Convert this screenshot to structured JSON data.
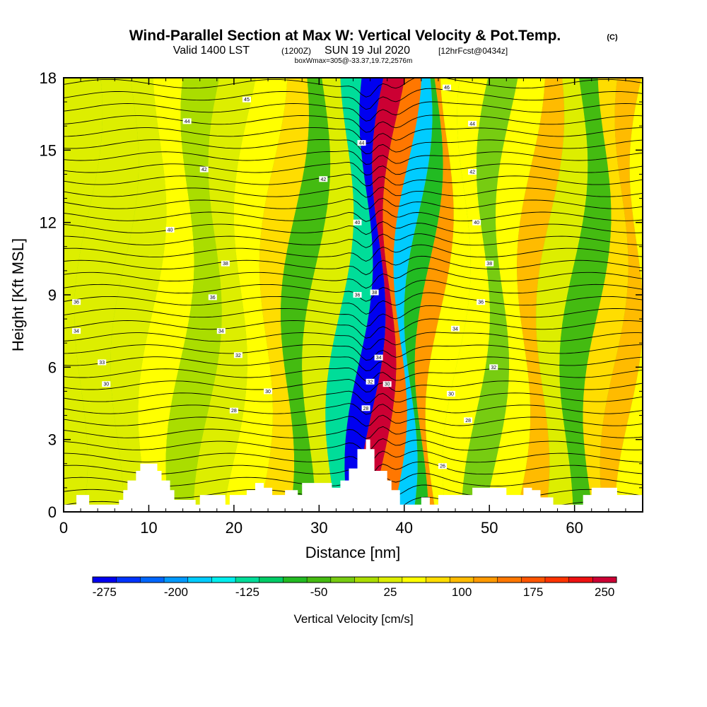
{
  "title": {
    "main": "Wind-Parallel Section at Max W: Vertical Velocity & Pot.Temp.",
    "copyright": "(C)",
    "valid_prefix": "Valid 1400 LST",
    "valid_utc": "(1200Z)",
    "valid_date": "SUN 19 Jul 2020",
    "forecast": "[12hrFcst@0434z]",
    "box_info": "boxWmax=305@-33.37,19.72,2576m"
  },
  "chart_data": {
    "type": "heatmap",
    "xlabel": "Distance [nm]",
    "ylabel": "Height [Kft MSL]",
    "xlim": [
      0,
      68
    ],
    "ylim": [
      0,
      18
    ],
    "x_ticks": [
      0,
      10,
      20,
      30,
      40,
      50,
      60
    ],
    "y_ticks": [
      0,
      3,
      6,
      9,
      12,
      15,
      18
    ],
    "colorbar": {
      "title": "Vertical Velocity [cm/s]",
      "tick_labels": [
        "-275",
        "-200",
        "-125",
        "-50",
        "25",
        "100",
        "175",
        "250"
      ],
      "colors": [
        "#0000f0",
        "#0033ff",
        "#0066ff",
        "#0099ff",
        "#00ccff",
        "#00eeee",
        "#00dd99",
        "#00cc66",
        "#22bb22",
        "#44bb11",
        "#77cc11",
        "#aadd00",
        "#ddee00",
        "#ffff00",
        "#ffdd00",
        "#ffbb00",
        "#ff9900",
        "#ff7700",
        "#ff5500",
        "#ff3300",
        "#ee1111",
        "#cc0033"
      ]
    },
    "vertical_velocity_bands": [
      {
        "x": 0,
        "w": 22
      },
      {
        "x": 5,
        "w": 18
      },
      {
        "x": 9,
        "w": 28
      },
      {
        "x": 12,
        "w": 40
      },
      {
        "x": 16,
        "w": 10
      },
      {
        "x": 19,
        "w": 22
      },
      {
        "x": 22.5,
        "w": 45
      },
      {
        "x": 25.5,
        "w": 75
      },
      {
        "x": 28,
        "w": -40
      },
      {
        "x": 31,
        "w": 25
      },
      {
        "x": 34,
        "w": -120
      },
      {
        "x": 36,
        "w": -275
      },
      {
        "x": 37.5,
        "w": 240
      },
      {
        "x": 39,
        "w": 160
      },
      {
        "x": 40.5,
        "w": -180
      },
      {
        "x": 42,
        "w": -80
      },
      {
        "x": 43.5,
        "w": 130
      },
      {
        "x": 45,
        "w": 50
      },
      {
        "x": 48,
        "w": 40
      },
      {
        "x": 50,
        "w": -30
      },
      {
        "x": 53,
        "w": 45
      },
      {
        "x": 55.5,
        "w": 95
      },
      {
        "x": 58,
        "w": 20
      },
      {
        "x": 61.5,
        "w": -60
      },
      {
        "x": 64,
        "w": 80
      },
      {
        "x": 66,
        "w": 110
      },
      {
        "x": 68,
        "w": 55
      }
    ],
    "isentrope_labels": [
      {
        "x": 1.5,
        "y": 8.7,
        "label": "36"
      },
      {
        "x": 1.5,
        "y": 7.5,
        "label": "34"
      },
      {
        "x": 4.5,
        "y": 6.2,
        "label": "33"
      },
      {
        "x": 5,
        "y": 5.3,
        "label": "30"
      },
      {
        "x": 12.5,
        "y": 11.7,
        "label": "40"
      },
      {
        "x": 14.5,
        "y": 16.2,
        "label": "44"
      },
      {
        "x": 16.5,
        "y": 14.2,
        "label": "42"
      },
      {
        "x": 19,
        "y": 10.3,
        "label": "38"
      },
      {
        "x": 17.5,
        "y": 8.9,
        "label": "36"
      },
      {
        "x": 18.5,
        "y": 7.5,
        "label": "34"
      },
      {
        "x": 20.5,
        "y": 6.5,
        "label": "32"
      },
      {
        "x": 20,
        "y": 4.2,
        "label": "28"
      },
      {
        "x": 24,
        "y": 5.0,
        "label": "30"
      },
      {
        "x": 21.5,
        "y": 17.1,
        "label": "45"
      },
      {
        "x": 30.5,
        "y": 13.8,
        "label": "42"
      },
      {
        "x": 35,
        "y": 15.3,
        "label": "44"
      },
      {
        "x": 34.5,
        "y": 12.0,
        "label": "40"
      },
      {
        "x": 34.5,
        "y": 9.0,
        "label": "36"
      },
      {
        "x": 36.5,
        "y": 9.1,
        "label": "38"
      },
      {
        "x": 37,
        "y": 6.4,
        "label": "34"
      },
      {
        "x": 36,
        "y": 5.4,
        "label": "32"
      },
      {
        "x": 38,
        "y": 5.3,
        "label": "30"
      },
      {
        "x": 35.5,
        "y": 4.3,
        "label": "28"
      },
      {
        "x": 45,
        "y": 17.6,
        "label": "46"
      },
      {
        "x": 48,
        "y": 16.1,
        "label": "44"
      },
      {
        "x": 48,
        "y": 14.1,
        "label": "42"
      },
      {
        "x": 48.5,
        "y": 12.0,
        "label": "40"
      },
      {
        "x": 50,
        "y": 10.3,
        "label": "38"
      },
      {
        "x": 49,
        "y": 8.7,
        "label": "36"
      },
      {
        "x": 46,
        "y": 7.6,
        "label": "34"
      },
      {
        "x": 50.5,
        "y": 6.0,
        "label": "32"
      },
      {
        "x": 45.5,
        "y": 4.9,
        "label": "30"
      },
      {
        "x": 47.5,
        "y": 3.8,
        "label": "28"
      },
      {
        "x": 44.5,
        "y": 1.9,
        "label": "26"
      }
    ],
    "terrain_kft": [
      [
        0,
        0.3
      ],
      [
        1.5,
        0.7
      ],
      [
        3,
        0.3
      ],
      [
        5.5,
        0.3
      ],
      [
        6.5,
        0.5
      ],
      [
        7,
        0.9
      ],
      [
        7.5,
        1.3
      ],
      [
        8.5,
        1.7
      ],
      [
        9,
        2.0
      ],
      [
        11,
        1.7
      ],
      [
        11.5,
        1.3
      ],
      [
        12.5,
        0.9
      ],
      [
        13,
        0.5
      ],
      [
        15.5,
        0.3
      ],
      [
        16,
        0.7
      ],
      [
        18,
        0.7
      ],
      [
        19,
        0.3
      ],
      [
        19.5,
        0.7
      ],
      [
        21,
        0.7
      ],
      [
        21.5,
        0.9
      ],
      [
        22.5,
        1.2
      ],
      [
        23.5,
        1.0
      ],
      [
        24.5,
        0.7
      ],
      [
        26,
        0.9
      ],
      [
        27.5,
        0.7
      ],
      [
        28,
        1.2
      ],
      [
        30.5,
        1.2
      ],
      [
        31.5,
        1.0
      ],
      [
        32.5,
        1.3
      ],
      [
        33.5,
        1.8
      ],
      [
        34.5,
        2.6
      ],
      [
        35.5,
        3.0
      ],
      [
        36,
        2.6
      ],
      [
        36.5,
        1.7
      ],
      [
        38,
        1.3
      ],
      [
        38.5,
        0.9
      ],
      [
        39.5,
        0.3
      ],
      [
        41,
        0.3
      ],
      [
        42,
        0.6
      ],
      [
        43,
        0.3
      ],
      [
        44,
        0.7
      ],
      [
        47.5,
        0.7
      ],
      [
        48,
        1.0
      ],
      [
        51,
        1.0
      ],
      [
        52,
        0.7
      ],
      [
        53.5,
        0.7
      ],
      [
        54,
        1.0
      ],
      [
        55,
        0.9
      ],
      [
        56,
        0.6
      ],
      [
        57.5,
        0.3
      ],
      [
        60.5,
        0.3
      ],
      [
        61,
        0.7
      ],
      [
        62,
        1.0
      ],
      [
        64.5,
        1.0
      ],
      [
        65,
        0.7
      ],
      [
        68,
        0.7
      ]
    ]
  }
}
